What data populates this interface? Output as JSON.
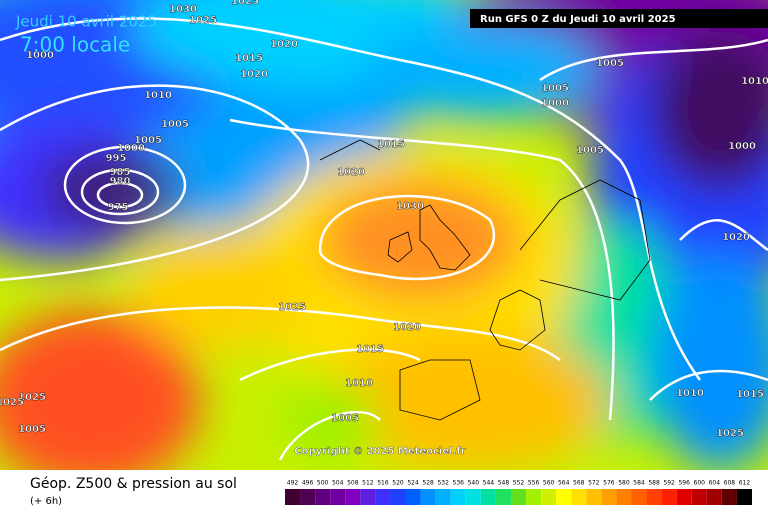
{
  "header": {
    "date": "Jeudi 10 avril 2025",
    "time": "7:00 locale",
    "run": "Run GFS 0 Z du Jeudi 10 avril 2025"
  },
  "map": {
    "isobar_labels": [
      1030,
      1025,
      1025,
      1020,
      1015,
      1020,
      1010,
      1005,
      1005,
      1000,
      995,
      985,
      980,
      975,
      1015,
      1020,
      1030,
      1025,
      1020,
      1015,
      1010,
      1005,
      1005,
      1005,
      1000,
      1000,
      1010,
      1005,
      1000,
      1020,
      1010,
      1015,
      1025,
      1025,
      1025,
      1005
    ],
    "copyright": "Copyright © 2025 Meteociel.fr"
  },
  "footer": {
    "title": "Géop. Z500 & pression au sol",
    "step": "(+ 6h)",
    "scale": [
      {
        "value": 492,
        "color": "#400030"
      },
      {
        "value": 496,
        "color": "#500050"
      },
      {
        "value": 500,
        "color": "#600080"
      },
      {
        "value": 504,
        "color": "#7000a0"
      },
      {
        "value": 508,
        "color": "#8000c0"
      },
      {
        "value": 512,
        "color": "#6020e0"
      },
      {
        "value": 516,
        "color": "#4030ff"
      },
      {
        "value": 520,
        "color": "#2040ff"
      },
      {
        "value": 524,
        "color": "#0060ff"
      },
      {
        "value": 528,
        "color": "#0090ff"
      },
      {
        "value": 532,
        "color": "#00b0ff"
      },
      {
        "value": 536,
        "color": "#00d0ff"
      },
      {
        "value": 540,
        "color": "#00e0e0"
      },
      {
        "value": 544,
        "color": "#00e0a0"
      },
      {
        "value": 548,
        "color": "#20e060"
      },
      {
        "value": 552,
        "color": "#60e020"
      },
      {
        "value": 556,
        "color": "#a0f000"
      },
      {
        "value": 560,
        "color": "#d0f000"
      },
      {
        "value": 564,
        "color": "#ffff00"
      },
      {
        "value": 568,
        "color": "#ffe000"
      },
      {
        "value": 572,
        "color": "#ffc000"
      },
      {
        "value": 576,
        "color": "#ffa000"
      },
      {
        "value": 580,
        "color": "#ff8000"
      },
      {
        "value": 584,
        "color": "#ff6000"
      },
      {
        "value": 588,
        "color": "#ff4000"
      },
      {
        "value": 592,
        "color": "#ff2000"
      },
      {
        "value": 596,
        "color": "#e00000"
      },
      {
        "value": 600,
        "color": "#c00000"
      },
      {
        "value": 604,
        "color": "#a00000"
      },
      {
        "value": 608,
        "color": "#600000"
      },
      {
        "value": 612,
        "color": "#000000"
      }
    ]
  }
}
